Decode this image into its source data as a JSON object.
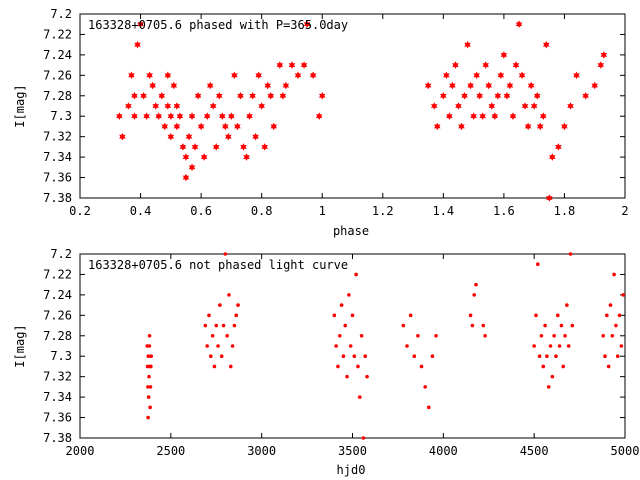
{
  "chart_data": [
    {
      "type": "scatter",
      "title": "163328+0705.6 phased with P=365.0day",
      "xlabel": "phase",
      "ylabel": "I[mag]",
      "xlim": [
        0.2,
        2.0
      ],
      "ylim": [
        7.38,
        7.2
      ],
      "y_inverted": true,
      "xticks": [
        "0.2",
        "0.4",
        "0.6",
        "0.8",
        "1",
        "1.2",
        "1.4",
        "1.6",
        "1.8",
        "2"
      ],
      "xtick_values": [
        0.2,
        0.4,
        0.6,
        0.8,
        1.0,
        1.2,
        1.4,
        1.6,
        1.8,
        2.0
      ],
      "yticks": [
        "7.2",
        "7.22",
        "7.24",
        "7.26",
        "7.28",
        "7.3",
        "7.32",
        "7.34",
        "7.36",
        "7.38"
      ],
      "ytick_values": [
        7.2,
        7.22,
        7.24,
        7.26,
        7.28,
        7.3,
        7.32,
        7.34,
        7.36,
        7.38
      ],
      "marker": "star",
      "color": "#ff0000",
      "series": [
        {
          "points": [
            [
              0.33,
              7.3
            ],
            [
              0.34,
              7.32
            ],
            [
              0.36,
              7.29
            ],
            [
              0.37,
              7.26
            ],
            [
              0.38,
              7.28
            ],
            [
              0.38,
              7.3
            ],
            [
              0.39,
              7.23
            ],
            [
              0.4,
              7.21
            ],
            [
              0.41,
              7.28
            ],
            [
              0.42,
              7.3
            ],
            [
              0.43,
              7.26
            ],
            [
              0.44,
              7.27
            ],
            [
              0.45,
              7.29
            ],
            [
              0.46,
              7.3
            ],
            [
              0.47,
              7.28
            ],
            [
              0.48,
              7.31
            ],
            [
              0.49,
              7.26
            ],
            [
              0.49,
              7.29
            ],
            [
              0.5,
              7.3
            ],
            [
              0.5,
              7.32
            ],
            [
              0.51,
              7.27
            ],
            [
              0.52,
              7.29
            ],
            [
              0.52,
              7.31
            ],
            [
              0.53,
              7.3
            ],
            [
              0.54,
              7.33
            ],
            [
              0.55,
              7.34
            ],
            [
              0.55,
              7.36
            ],
            [
              0.56,
              7.32
            ],
            [
              0.57,
              7.3
            ],
            [
              0.57,
              7.35
            ],
            [
              0.58,
              7.33
            ],
            [
              0.59,
              7.28
            ],
            [
              0.6,
              7.31
            ],
            [
              0.61,
              7.34
            ],
            [
              0.62,
              7.3
            ],
            [
              0.63,
              7.27
            ],
            [
              0.64,
              7.29
            ],
            [
              0.65,
              7.33
            ],
            [
              0.66,
              7.28
            ],
            [
              0.67,
              7.3
            ],
            [
              0.68,
              7.31
            ],
            [
              0.69,
              7.32
            ],
            [
              0.7,
              7.3
            ],
            [
              0.71,
              7.26
            ],
            [
              0.72,
              7.31
            ],
            [
              0.73,
              7.28
            ],
            [
              0.74,
              7.33
            ],
            [
              0.75,
              7.34
            ],
            [
              0.76,
              7.3
            ],
            [
              0.77,
              7.28
            ],
            [
              0.78,
              7.32
            ],
            [
              0.79,
              7.26
            ],
            [
              0.8,
              7.29
            ],
            [
              0.81,
              7.33
            ],
            [
              0.82,
              7.27
            ],
            [
              0.83,
              7.28
            ],
            [
              0.84,
              7.31
            ],
            [
              0.86,
              7.25
            ],
            [
              0.87,
              7.28
            ],
            [
              0.88,
              7.27
            ],
            [
              0.9,
              7.25
            ],
            [
              0.92,
              7.26
            ],
            [
              0.94,
              7.25
            ],
            [
              0.95,
              7.21
            ],
            [
              0.97,
              7.26
            ],
            [
              0.99,
              7.3
            ],
            [
              1.0,
              7.28
            ],
            [
              1.35,
              7.27
            ],
            [
              1.37,
              7.29
            ],
            [
              1.38,
              7.31
            ],
            [
              1.4,
              7.28
            ],
            [
              1.41,
              7.26
            ],
            [
              1.42,
              7.3
            ],
            [
              1.43,
              7.27
            ],
            [
              1.44,
              7.25
            ],
            [
              1.45,
              7.29
            ],
            [
              1.46,
              7.31
            ],
            [
              1.47,
              7.28
            ],
            [
              1.48,
              7.23
            ],
            [
              1.49,
              7.27
            ],
            [
              1.5,
              7.3
            ],
            [
              1.51,
              7.26
            ],
            [
              1.52,
              7.28
            ],
            [
              1.53,
              7.3
            ],
            [
              1.54,
              7.25
            ],
            [
              1.55,
              7.27
            ],
            [
              1.56,
              7.29
            ],
            [
              1.57,
              7.3
            ],
            [
              1.58,
              7.28
            ],
            [
              1.59,
              7.26
            ],
            [
              1.6,
              7.24
            ],
            [
              1.61,
              7.28
            ],
            [
              1.62,
              7.27
            ],
            [
              1.63,
              7.3
            ],
            [
              1.64,
              7.25
            ],
            [
              1.65,
              7.21
            ],
            [
              1.66,
              7.26
            ],
            [
              1.67,
              7.29
            ],
            [
              1.68,
              7.31
            ],
            [
              1.69,
              7.27
            ],
            [
              1.7,
              7.29
            ],
            [
              1.71,
              7.28
            ],
            [
              1.72,
              7.31
            ],
            [
              1.73,
              7.3
            ],
            [
              1.74,
              7.23
            ],
            [
              1.75,
              7.38
            ],
            [
              1.76,
              7.34
            ],
            [
              1.78,
              7.33
            ],
            [
              1.8,
              7.31
            ],
            [
              1.82,
              7.29
            ],
            [
              1.84,
              7.26
            ],
            [
              1.87,
              7.28
            ],
            [
              1.9,
              7.27
            ],
            [
              1.92,
              7.25
            ],
            [
              1.93,
              7.24
            ]
          ]
        }
      ]
    },
    {
      "type": "scatter",
      "title": "163328+0705.6 not phased light curve",
      "xlabel": "hjd0",
      "ylabel": "I[mag]",
      "xlim": [
        2000,
        5000
      ],
      "ylim": [
        7.38,
        7.2
      ],
      "y_inverted": true,
      "xticks": [
        "2000",
        "2500",
        "3000",
        "3500",
        "4000",
        "4500",
        "5000"
      ],
      "xtick_values": [
        2000,
        2500,
        3000,
        3500,
        4000,
        4500,
        5000
      ],
      "yticks": [
        "7.2",
        "7.22",
        "7.24",
        "7.26",
        "7.28",
        "7.3",
        "7.32",
        "7.34",
        "7.36",
        "7.38"
      ],
      "ytick_values": [
        7.2,
        7.22,
        7.24,
        7.26,
        7.28,
        7.3,
        7.32,
        7.34,
        7.36,
        7.38
      ],
      "marker": "dot",
      "color": "#ff0000",
      "series": [
        {
          "points": [
            [
              2370,
              7.29
            ],
            [
              2372,
              7.31
            ],
            [
              2374,
              7.33
            ],
            [
              2376,
              7.3
            ],
            [
              2378,
              7.34
            ],
            [
              2380,
              7.32
            ],
            [
              2382,
              7.29
            ],
            [
              2384,
              7.31
            ],
            [
              2386,
              7.35
            ],
            [
              2388,
              7.33
            ],
            [
              2390,
              7.31
            ],
            [
              2392,
              7.3
            ],
            [
              2375,
              7.36
            ],
            [
              2383,
              7.28
            ],
            [
              2690,
              7.27
            ],
            [
              2700,
              7.29
            ],
            [
              2710,
              7.26
            ],
            [
              2720,
              7.3
            ],
            [
              2730,
              7.28
            ],
            [
              2740,
              7.31
            ],
            [
              2750,
              7.27
            ],
            [
              2760,
              7.29
            ],
            [
              2770,
              7.25
            ],
            [
              2780,
              7.3
            ],
            [
              2790,
              7.27
            ],
            [
              2800,
              7.2
            ],
            [
              2810,
              7.28
            ],
            [
              2820,
              7.24
            ],
            [
              2830,
              7.31
            ],
            [
              2840,
              7.29
            ],
            [
              2850,
              7.27
            ],
            [
              2860,
              7.26
            ],
            [
              2870,
              7.25
            ],
            [
              3400,
              7.26
            ],
            [
              3410,
              7.29
            ],
            [
              3420,
              7.31
            ],
            [
              3430,
              7.28
            ],
            [
              3440,
              7.25
            ],
            [
              3450,
              7.3
            ],
            [
              3460,
              7.27
            ],
            [
              3470,
              7.32
            ],
            [
              3480,
              7.24
            ],
            [
              3490,
              7.29
            ],
            [
              3500,
              7.26
            ],
            [
              3510,
              7.3
            ],
            [
              3520,
              7.22
            ],
            [
              3530,
              7.31
            ],
            [
              3540,
              7.34
            ],
            [
              3550,
              7.28
            ],
            [
              3560,
              7.38
            ],
            [
              3570,
              7.3
            ],
            [
              3580,
              7.32
            ],
            [
              3780,
              7.27
            ],
            [
              3800,
              7.29
            ],
            [
              3820,
              7.26
            ],
            [
              3840,
              7.3
            ],
            [
              3860,
              7.28
            ],
            [
              3880,
              7.31
            ],
            [
              3900,
              7.33
            ],
            [
              3920,
              7.35
            ],
            [
              3940,
              7.3
            ],
            [
              3960,
              7.28
            ],
            [
              4150,
              7.26
            ],
            [
              4160,
              7.27
            ],
            [
              4170,
              7.24
            ],
            [
              4180,
              7.23
            ],
            [
              4220,
              7.27
            ],
            [
              4230,
              7.28
            ],
            [
              4500,
              7.29
            ],
            [
              4510,
              7.26
            ],
            [
              4520,
              7.21
            ],
            [
              4530,
              7.3
            ],
            [
              4540,
              7.28
            ],
            [
              4550,
              7.31
            ],
            [
              4560,
              7.27
            ],
            [
              4570,
              7.3
            ],
            [
              4580,
              7.33
            ],
            [
              4590,
              7.29
            ],
            [
              4600,
              7.32
            ],
            [
              4610,
              7.28
            ],
            [
              4620,
              7.3
            ],
            [
              4630,
              7.26
            ],
            [
              4640,
              7.29
            ],
            [
              4650,
              7.27
            ],
            [
              4660,
              7.31
            ],
            [
              4670,
              7.28
            ],
            [
              4680,
              7.25
            ],
            [
              4690,
              7.29
            ],
            [
              4700,
              7.2
            ],
            [
              4710,
              7.27
            ],
            [
              4880,
              7.28
            ],
            [
              4890,
              7.3
            ],
            [
              4900,
              7.26
            ],
            [
              4910,
              7.31
            ],
            [
              4920,
              7.25
            ],
            [
              4930,
              7.28
            ],
            [
              4940,
              7.22
            ],
            [
              4950,
              7.27
            ],
            [
              4960,
              7.3
            ],
            [
              4970,
              7.26
            ],
            [
              4980,
              7.29
            ],
            [
              4990,
              7.24
            ]
          ]
        }
      ]
    }
  ]
}
